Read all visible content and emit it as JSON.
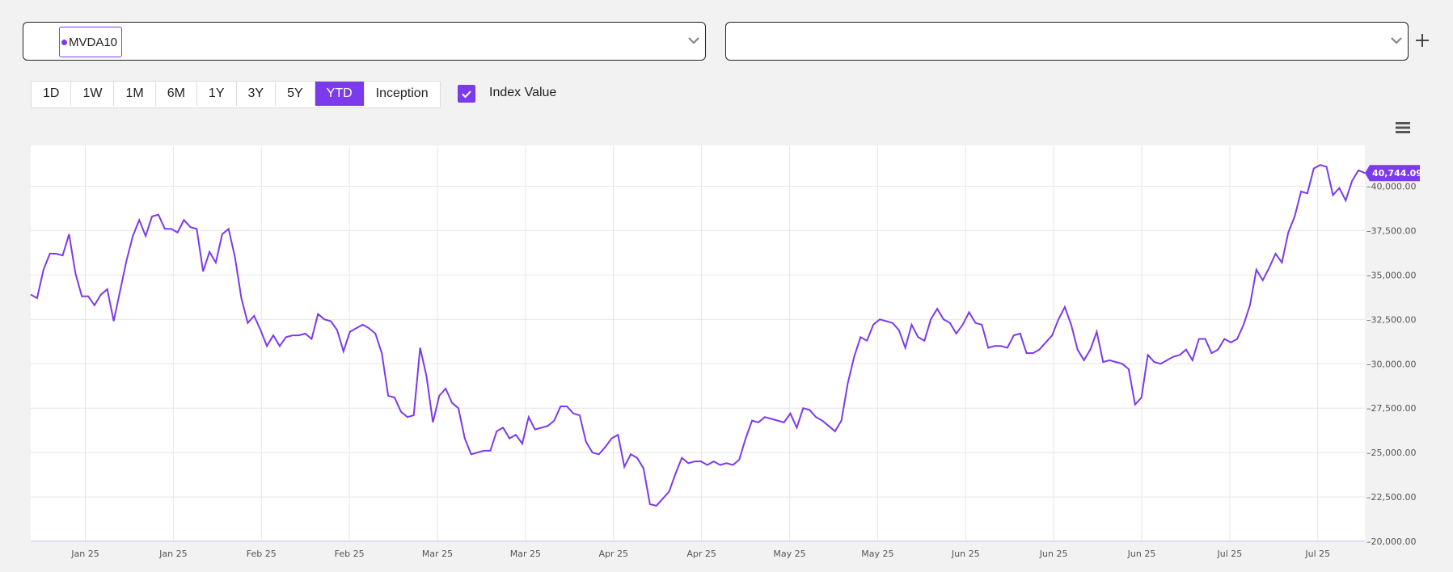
{
  "selector": {
    "primary_tag": "MVDA10",
    "secondary_value": ""
  },
  "ranges": [
    "1D",
    "1W",
    "1M",
    "6M",
    "1Y",
    "3Y",
    "5Y",
    "YTD",
    "Inception"
  ],
  "active_range": "YTD",
  "toggle": {
    "label": "Index Value",
    "checked": true
  },
  "icons": {
    "add": "plus-icon",
    "menu": "hamburger-menu-icon",
    "dropdown": "chevron-down-icon",
    "check": "checkmark-icon"
  },
  "colors": {
    "accent": "#7c3aed",
    "line": "#7c3aed"
  },
  "chart_data": {
    "type": "line",
    "series": [
      {
        "name": "MVDA10"
      }
    ],
    "x_tick_labels": [
      "Jan 25",
      "Jan 25",
      "Feb 25",
      "Feb 25",
      "Mar 25",
      "Mar 25",
      "Apr 25",
      "Apr 25",
      "May 25",
      "May 25",
      "Jun 25",
      "Jun 25",
      "Jun 25",
      "Jul 25",
      "Jul 25"
    ],
    "y_ticks": [
      20000,
      22500,
      25000,
      27500,
      30000,
      32500,
      35000,
      37500,
      40000
    ],
    "y_tick_labels": [
      "20,000.00",
      "22,500.00",
      "25,000.00",
      "27,500.00",
      "30,000.00",
      "32,500.00",
      "35,000.00",
      "37,500.00",
      "40,000.00"
    ],
    "ylim": [
      20000,
      42300
    ],
    "last_value_label": "40,744.09",
    "grid": true,
    "values": [
      33900,
      33700,
      35300,
      36200,
      36200,
      36100,
      37300,
      35100,
      33800,
      33800,
      33300,
      33900,
      34200,
      32400,
      34100,
      35800,
      37200,
      38100,
      37200,
      38300,
      38400,
      37600,
      37600,
      37400,
      38100,
      37700,
      37600,
      35200,
      36300,
      35700,
      37300,
      37600,
      36000,
      33700,
      32300,
      32700,
      31900,
      31000,
      31600,
      31000,
      31500,
      31600,
      31600,
      31700,
      31400,
      32800,
      32500,
      32400,
      31900,
      30700,
      31800,
      32000,
      32200,
      32000,
      31700,
      30600,
      28200,
      28100,
      27300,
      27000,
      27100,
      30900,
      29300,
      26700,
      28200,
      28600,
      27800,
      27500,
      25800,
      24900,
      25000,
      25100,
      25100,
      26200,
      26400,
      25800,
      26000,
      25500,
      27000,
      26300,
      26400,
      26500,
      26800,
      27600,
      27600,
      27200,
      27100,
      25600,
      25000,
      24900,
      25300,
      25800,
      26000,
      24200,
      24900,
      24700,
      24100,
      22100,
      22000,
      22400,
      22800,
      23800,
      24700,
      24400,
      24500,
      24500,
      24300,
      24500,
      24300,
      24400,
      24300,
      24600,
      25800,
      26800,
      26700,
      27000,
      26900,
      26800,
      26700,
      27200,
      26400,
      27500,
      27400,
      27000,
      26800,
      26500,
      26200,
      26800,
      28900,
      30400,
      31500,
      31300,
      32200,
      32500,
      32400,
      32300,
      31900,
      30900,
      32200,
      31500,
      31300,
      32500,
      33100,
      32500,
      32300,
      31700,
      32200,
      32900,
      32300,
      32200,
      30900,
      31000,
      31000,
      30900,
      31600,
      31700,
      30600,
      30600,
      30800,
      31200,
      31600,
      32500,
      33200,
      32200,
      30800,
      30200,
      30800,
      31800,
      30100,
      30200,
      30100,
      30000,
      29700,
      27700,
      28100,
      30500,
      30100,
      30000,
      30200,
      30400,
      30500,
      30800,
      30200,
      31400,
      31400,
      30600,
      30800,
      31400,
      31200,
      31400,
      32200,
      33300,
      35300,
      34700,
      35400,
      36200,
      35700,
      37400,
      38300,
      39700,
      39600,
      41000,
      41200,
      41100,
      39500,
      39900,
      39200,
      40300,
      40900,
      40744.09
    ]
  }
}
